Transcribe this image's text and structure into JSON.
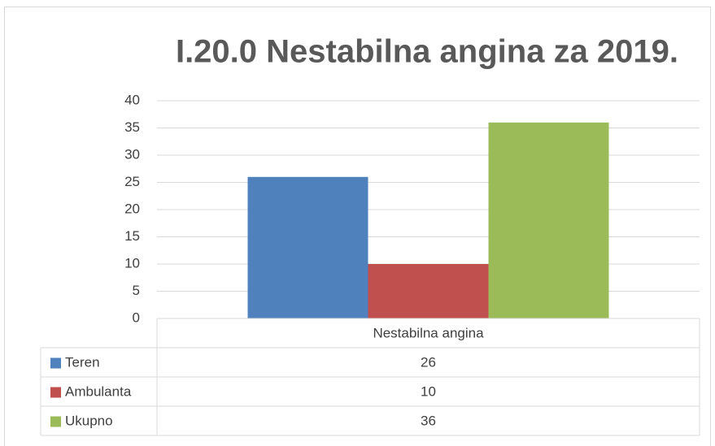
{
  "chart_data": {
    "type": "bar",
    "title": "I.20.0 Nestabilna angina za 2019.",
    "categories": [
      "Nestabilna angina"
    ],
    "series": [
      {
        "name": "Teren",
        "color": "#4f81bd",
        "values": [
          26
        ]
      },
      {
        "name": "Ambulanta",
        "color": "#c0504d",
        "values": [
          10
        ]
      },
      {
        "name": "Ukupno",
        "color": "#9bbb59",
        "values": [
          36
        ]
      }
    ],
    "ylim": [
      0,
      40
    ],
    "yticks": [
      0,
      5,
      10,
      15,
      20,
      25,
      30,
      35,
      40
    ],
    "grid": true
  }
}
